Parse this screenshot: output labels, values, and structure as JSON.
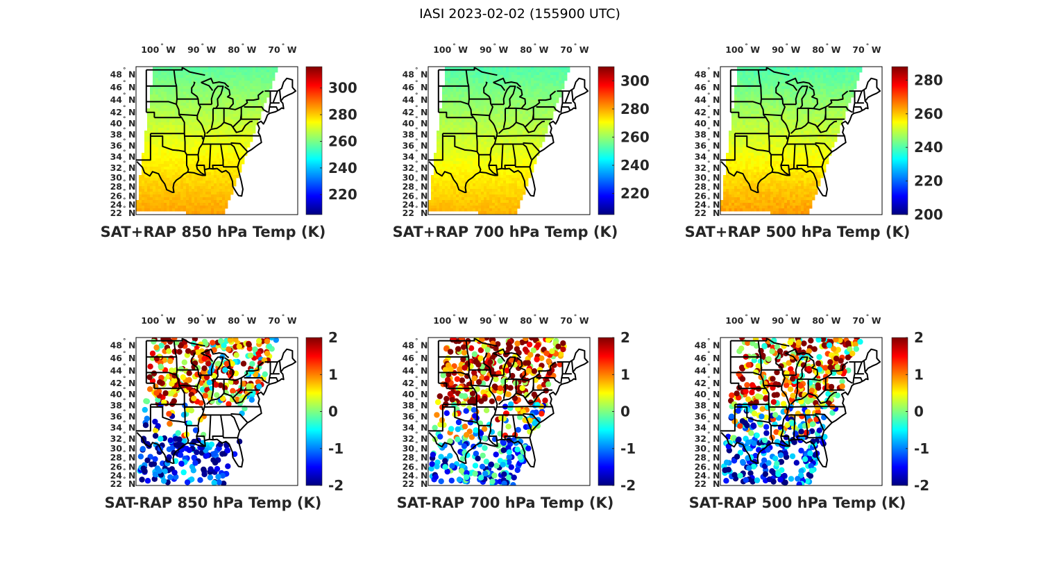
{
  "figure_title": "IASI 2023-02-02 (155900 UTC)",
  "colormap": "jet",
  "chart_data": [
    {
      "type": "heatmap",
      "title": "SAT+RAP 850 hPa Temp (K)",
      "map_region": "Central/Eastern CONUS",
      "lon_ticks": [
        "100° W",
        "90° W",
        "80° W",
        "70° W"
      ],
      "lat_ticks": [
        "48° N",
        "46° N",
        "44° N",
        "42° N",
        "40° N",
        "38° N",
        "36° N",
        "34° N",
        "32° N",
        "30° N",
        "28° N",
        "26° N",
        "24° N",
        "22° N"
      ],
      "colorbar": {
        "label_ticks": [
          300,
          280,
          260,
          240,
          220
        ],
        "clim": [
          205,
          316
        ]
      },
      "field_summary": {
        "north": 257,
        "central": 272,
        "south": 285
      }
    },
    {
      "type": "heatmap",
      "title": "SAT+RAP 700 hPa Temp (K)",
      "map_region": "Central/Eastern CONUS",
      "lon_ticks": [
        "100° W",
        "90° W",
        "80° W",
        "70° W"
      ],
      "lat_ticks": [
        "48° N",
        "46° N",
        "44° N",
        "42° N",
        "40° N",
        "38° N",
        "36° N",
        "34° N",
        "32° N",
        "30° N",
        "28° N",
        "26° N",
        "24° N",
        "22° N"
      ],
      "colorbar": {
        "label_ticks": [
          300,
          280,
          260,
          240,
          220
        ],
        "clim": [
          205,
          310
        ]
      },
      "field_summary": {
        "north": 253,
        "central": 266,
        "south": 279
      }
    },
    {
      "type": "heatmap",
      "title": "SAT+RAP 500 hPa Temp (K)",
      "map_region": "Central/Eastern CONUS",
      "lon_ticks": [
        "100° W",
        "90° W",
        "80° W",
        "70° W"
      ],
      "lat_ticks": [
        "48° N",
        "46° N",
        "44° N",
        "42° N",
        "40° N",
        "38° N",
        "36° N",
        "34° N",
        "32° N",
        "30° N",
        "28° N",
        "26° N",
        "24° N",
        "22° N"
      ],
      "colorbar": {
        "label_ticks": [
          280,
          260,
          240,
          220,
          200
        ],
        "clim": [
          200,
          288
        ]
      },
      "field_summary": {
        "north": 240,
        "central": 252,
        "south": 264
      }
    },
    {
      "type": "scatter",
      "title": "SAT-RAP 850 hPa Temp (K)",
      "map_region": "Central/Eastern CONUS",
      "lon_ticks": [
        "100° W",
        "90° W",
        "80° W",
        "70° W"
      ],
      "lat_ticks": [
        "48° N",
        "46° N",
        "44° N",
        "42° N",
        "40° N",
        "38° N",
        "36° N",
        "34° N",
        "32° N",
        "30° N",
        "28° N",
        "26° N",
        "24° N",
        "22° N"
      ],
      "colorbar": {
        "label_ticks": [
          2,
          1,
          0,
          -1,
          -2
        ],
        "clim": [
          -2,
          2
        ]
      },
      "field_summary": {
        "north_plains": 1.2,
        "great_lakes": 0.6,
        "south": -2.0
      }
    },
    {
      "type": "scatter",
      "title": "SAT-RAP 700 hPa Temp (K)",
      "map_region": "Central/Eastern CONUS",
      "lon_ticks": [
        "100° W",
        "90° W",
        "80° W",
        "70° W"
      ],
      "lat_ticks": [
        "48° N",
        "46° N",
        "44° N",
        "42° N",
        "40° N",
        "38° N",
        "36° N",
        "34° N",
        "32° N",
        "30° N",
        "28° N",
        "26° N",
        "24° N",
        "22° N"
      ],
      "colorbar": {
        "label_ticks": [
          2,
          1,
          0,
          -1,
          -2
        ],
        "clim": [
          -2,
          2
        ]
      },
      "field_summary": {
        "north_plains": 1.5,
        "great_lakes": 1.5,
        "south": -1.4
      }
    },
    {
      "type": "scatter",
      "title": "SAT-RAP 500 hPa Temp (K)",
      "map_region": "Central/Eastern CONUS",
      "lon_ticks": [
        "100° W",
        "90° W",
        "80° W",
        "70° W"
      ],
      "lat_ticks": [
        "48° N",
        "46° N",
        "44° N",
        "42° N",
        "40° N",
        "38° N",
        "36° N",
        "34° N",
        "32° N",
        "30° N",
        "28° N",
        "26° N",
        "24° N",
        "22° N"
      ],
      "colorbar": {
        "label_ticks": [
          2,
          1,
          0,
          -1,
          -2
        ],
        "clim": [
          -2,
          2
        ]
      },
      "field_summary": {
        "north_plains": 1.2,
        "great_lakes": 1.0,
        "south": -1.8
      }
    }
  ]
}
